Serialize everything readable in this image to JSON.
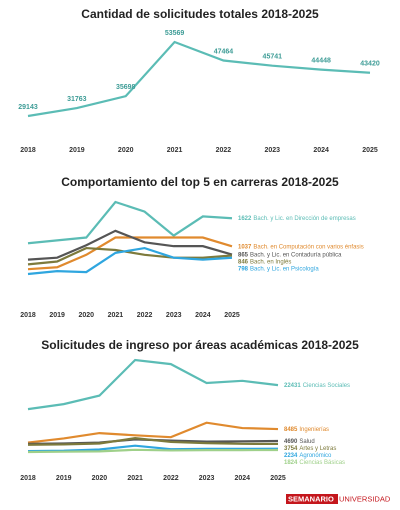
{
  "chart_data": [
    {
      "type": "line",
      "title": "Cantidad de solicitudes totales 2018-2025",
      "x": [
        "2018",
        "2019",
        "2020",
        "2021",
        "2022",
        "2023",
        "2024",
        "2025"
      ],
      "values": [
        29143,
        31763,
        35698,
        53569,
        47464,
        45741,
        44448,
        43420
      ],
      "color": "#5bbcb5"
    },
    {
      "type": "line",
      "title": "Comportamiento del top 5 en carreras 2018-2025",
      "x": [
        "2018",
        "2019",
        "2020",
        "2021",
        "2022",
        "2023",
        "2024",
        "2025"
      ],
      "series": [
        {
          "name": "Bach. y Lic. en Dirección de empresas",
          "color": "#5bbcb5",
          "values": [
            1100,
            1160,
            1220,
            1960,
            1760,
            1260,
            1660,
            1622
          ]
        },
        {
          "name": "Bach. en Computación con varios énfasis",
          "color": "#e08a2e",
          "values": [
            560,
            600,
            860,
            1220,
            1220,
            1220,
            1220,
            1037
          ]
        },
        {
          "name": "Bach. y Lic. en Contaduría pública",
          "color": "#555555",
          "values": [
            760,
            800,
            1060,
            1360,
            1120,
            1040,
            1040,
            865
          ]
        },
        {
          "name": "Bach. en Inglés",
          "color": "#7d7a3c",
          "values": [
            660,
            720,
            1000,
            960,
            860,
            800,
            800,
            846
          ]
        },
        {
          "name": "Bach. y Lic. en Psicología",
          "color": "#2fa6df",
          "values": [
            460,
            520,
            500,
            900,
            1000,
            800,
            760,
            798
          ]
        }
      ]
    },
    {
      "type": "line",
      "title": "Solicitudes de ingreso por áreas académicas 2018-2025",
      "x": [
        "2018",
        "2019",
        "2020",
        "2021",
        "2022",
        "2023",
        "2024",
        "2025"
      ],
      "series": [
        {
          "name": "Ciencias Sociales",
          "color": "#5bbcb5",
          "values": [
            14800,
            16400,
            19100,
            30400,
            29100,
            23100,
            23800,
            22431
          ]
        },
        {
          "name": "Ingenierías",
          "color": "#e08a2e",
          "values": [
            4200,
            5500,
            7200,
            6500,
            5900,
            10500,
            8800,
            8485
          ]
        },
        {
          "name": "Salud",
          "color": "#555555",
          "values": [
            3800,
            3900,
            4200,
            5200,
            4800,
            4500,
            4600,
            4690
          ]
        },
        {
          "name": "Artes y Letras",
          "color": "#7d7a3c",
          "values": [
            3500,
            3600,
            3900,
            5600,
            4400,
            4000,
            3800,
            3754
          ]
        },
        {
          "name": "Agronómico",
          "color": "#2fa6df",
          "values": [
            1500,
            1600,
            2000,
            3200,
            2100,
            2200,
            2200,
            2234
          ]
        },
        {
          "name": "Ciencias Básicas",
          "color": "#9fd08a",
          "values": [
            1200,
            1300,
            1400,
            1900,
            1700,
            1800,
            1800,
            1824
          ]
        }
      ]
    }
  ],
  "logo": {
    "left": "SEMANARIO",
    "right": "UNIVERSIDAD"
  }
}
